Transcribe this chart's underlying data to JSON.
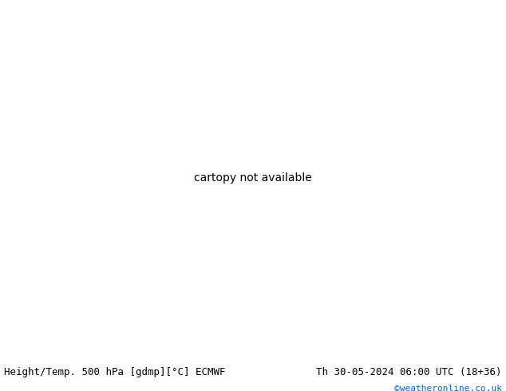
{
  "title_left": "Height/Temp. 500 hPa [gdmp][°C] ECMWF",
  "title_right": "Th 30-05-2024 06:00 UTC (18+36)",
  "watermark": "©weatheronline.co.uk",
  "bg_land": "#c8f0a0",
  "bg_sea": "#d8d8d8",
  "border_color": "#aaaaaa",
  "black": "#000000",
  "orange": "#e88000",
  "red": "#dd2020",
  "green": "#44bb44",
  "pink": "#dd44aa",
  "blue": "#0066cc",
  "white": "#ffffff",
  "lon_min": 70,
  "lon_max": 175,
  "lat_min": -15,
  "lat_max": 65
}
